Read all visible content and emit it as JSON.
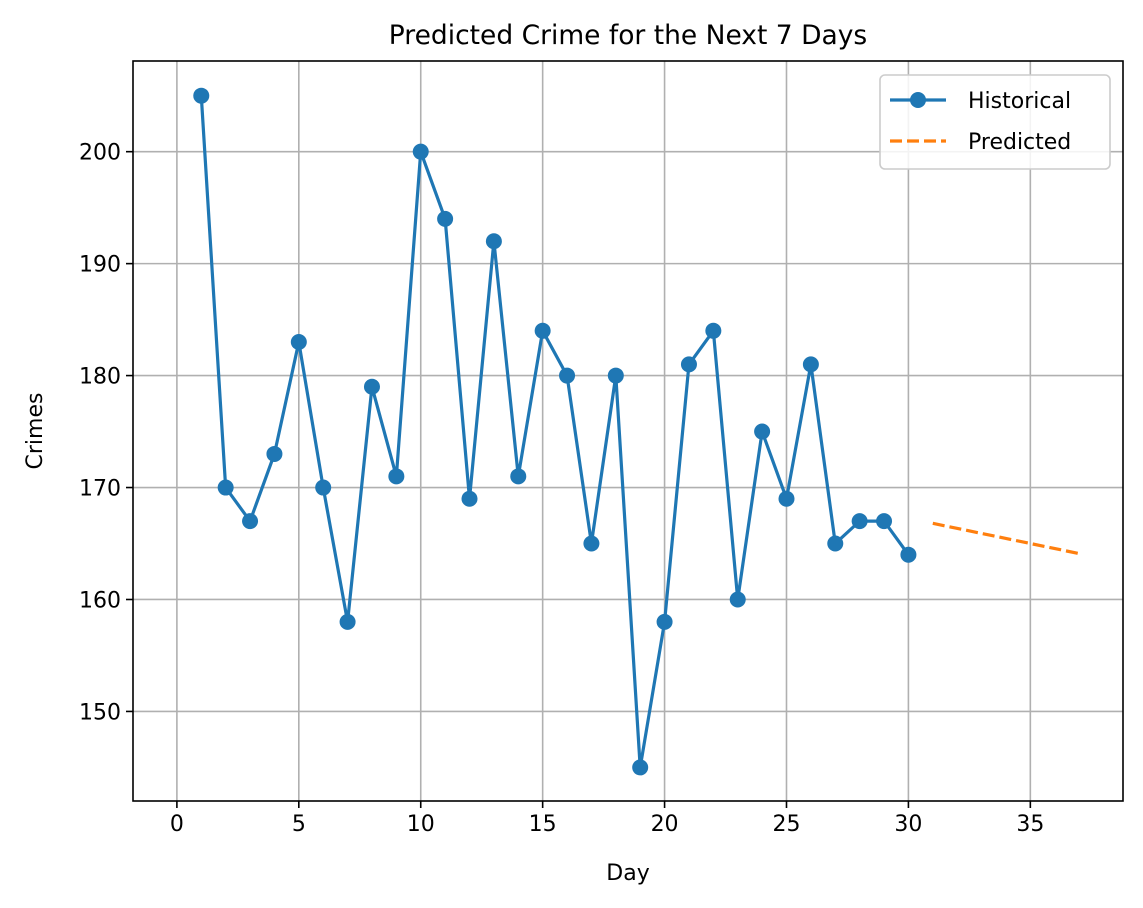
{
  "chart_data": {
    "type": "line",
    "title": "Predicted Crime for the Next 7 Days",
    "xlabel": "Day",
    "ylabel": "Crimes",
    "xlim": [
      -1.8,
      38.8
    ],
    "ylim": [
      142.0,
      208.1
    ],
    "xticks": [
      0,
      5,
      10,
      15,
      20,
      25,
      30,
      35
    ],
    "yticks": [
      150,
      160,
      170,
      180,
      190,
      200
    ],
    "grid": true,
    "legend_position": "top-right",
    "colors": {
      "historical": "#1f77b4",
      "predicted": "#ff7f0e"
    },
    "series": [
      {
        "name": "Historical",
        "style": "solid-with-markers",
        "x": [
          1,
          2,
          3,
          4,
          5,
          6,
          7,
          8,
          9,
          10,
          11,
          12,
          13,
          14,
          15,
          16,
          17,
          18,
          19,
          20,
          21,
          22,
          23,
          24,
          25,
          26,
          27,
          28,
          29,
          30
        ],
        "y": [
          205,
          170,
          167,
          173,
          183,
          170,
          158,
          179,
          171,
          200,
          194,
          169,
          192,
          171,
          184,
          180,
          165,
          180,
          145,
          158,
          181,
          184,
          160,
          175,
          169,
          181,
          165,
          167,
          167,
          164
        ]
      },
      {
        "name": "Predicted",
        "style": "dashed",
        "x": [
          31,
          37
        ],
        "y": [
          166.8,
          164.1
        ]
      }
    ]
  }
}
